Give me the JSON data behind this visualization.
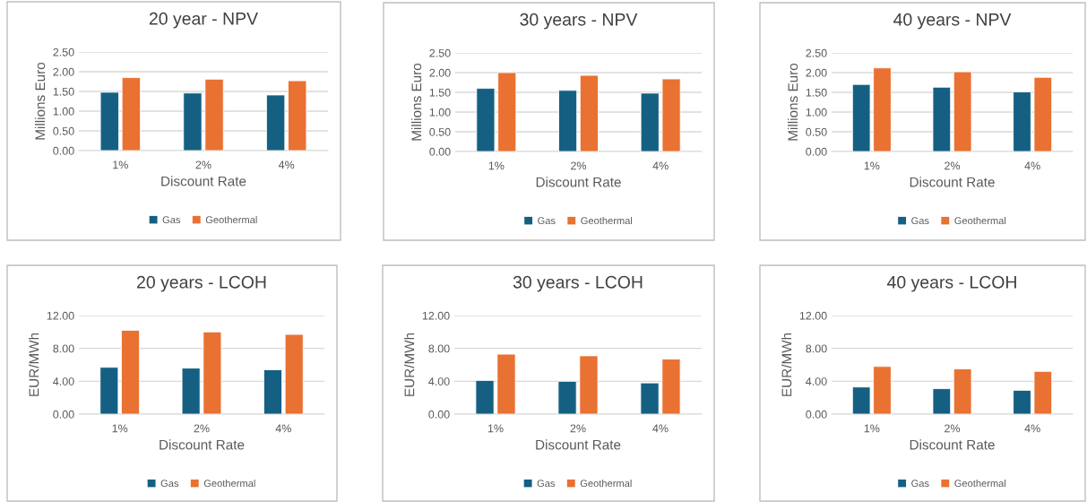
{
  "chart_data": [
    {
      "type": "bar",
      "title": "20 year - NPV",
      "xlabel": "Discount Rate",
      "ylabel": "Millions Euro",
      "categories": [
        "1%",
        "2%",
        "4%"
      ],
      "series": [
        {
          "name": "Gas",
          "color": "#156082",
          "values": [
            1.48,
            1.46,
            1.41
          ]
        },
        {
          "name": "Geothermal",
          "color": "#e97132",
          "values": [
            1.85,
            1.81,
            1.77
          ]
        }
      ],
      "ylim": [
        0,
        2.5
      ],
      "yticks": [
        {
          "value": 0,
          "label": "0.00"
        },
        {
          "value": 0.5,
          "label": "0.50"
        },
        {
          "value": 1,
          "label": "1.00"
        },
        {
          "value": 1.5,
          "label": "1.50"
        },
        {
          "value": 2,
          "label": "2.00"
        },
        {
          "value": 2.5,
          "label": "2.50"
        }
      ],
      "grid": "y",
      "legend": "bottom"
    },
    {
      "type": "bar",
      "title": "30 years - NPV",
      "xlabel": "Discount Rate",
      "ylabel": "Millions Euro",
      "categories": [
        "1%",
        "2%",
        "4%"
      ],
      "series": [
        {
          "name": "Gas",
          "color": "#156082",
          "values": [
            1.6,
            1.55,
            1.48
          ]
        },
        {
          "name": "Geothermal",
          "color": "#e97132",
          "values": [
            2.0,
            1.93,
            1.84
          ]
        }
      ],
      "ylim": [
        0,
        2.5
      ],
      "yticks": [
        {
          "value": 0,
          "label": "0.00"
        },
        {
          "value": 0.5,
          "label": "0.50"
        },
        {
          "value": 1,
          "label": "1.00"
        },
        {
          "value": 1.5,
          "label": "1.50"
        },
        {
          "value": 2,
          "label": "2.00"
        },
        {
          "value": 2.5,
          "label": "2.50"
        }
      ],
      "grid": "y",
      "legend": "bottom"
    },
    {
      "type": "bar",
      "title": "40 years - NPV",
      "xlabel": "Discount Rate",
      "ylabel": "Millions Euro",
      "categories": [
        "1%",
        "2%",
        "4%"
      ],
      "series": [
        {
          "name": "Gas",
          "color": "#156082",
          "values": [
            1.7,
            1.63,
            1.51
          ]
        },
        {
          "name": "Geothermal",
          "color": "#e97132",
          "values": [
            2.12,
            2.02,
            1.88
          ]
        }
      ],
      "ylim": [
        0,
        2.5
      ],
      "yticks": [
        {
          "value": 0,
          "label": "0.00"
        },
        {
          "value": 0.5,
          "label": "0.50"
        },
        {
          "value": 1,
          "label": "1.00"
        },
        {
          "value": 1.5,
          "label": "1.50"
        },
        {
          "value": 2,
          "label": "2.00"
        },
        {
          "value": 2.5,
          "label": "2.50"
        }
      ],
      "grid": "y",
      "legend": "bottom"
    },
    {
      "type": "bar",
      "title": "20 years - LCOH",
      "xlabel": "Discount Rate",
      "ylabel": "EUR/MWh",
      "categories": [
        "1%",
        "2%",
        "4%"
      ],
      "series": [
        {
          "name": "Gas",
          "color": "#156082",
          "values": [
            5.7,
            5.6,
            5.4
          ]
        },
        {
          "name": "Geothermal",
          "color": "#e97132",
          "values": [
            10.2,
            10.0,
            9.7
          ]
        }
      ],
      "ylim": [
        0,
        12
      ],
      "yticks": [
        {
          "value": 0,
          "label": "0.00"
        },
        {
          "value": 4,
          "label": "4.00"
        },
        {
          "value": 8,
          "label": "8.00"
        },
        {
          "value": 12,
          "label": "12.00"
        }
      ],
      "grid": "y",
      "legend": "bottom"
    },
    {
      "type": "bar",
      "title": "30 years - LCOH",
      "xlabel": "Discount Rate",
      "ylabel": "EUR/MWh",
      "categories": [
        "1%",
        "2%",
        "4%"
      ],
      "series": [
        {
          "name": "Gas",
          "color": "#156082",
          "values": [
            4.1,
            4.0,
            3.8
          ]
        },
        {
          "name": "Geothermal",
          "color": "#e97132",
          "values": [
            7.3,
            7.1,
            6.7
          ]
        }
      ],
      "ylim": [
        0,
        12
      ],
      "yticks": [
        {
          "value": 0,
          "label": "0.00"
        },
        {
          "value": 4,
          "label": "4.00"
        },
        {
          "value": 8,
          "label": "8.00"
        },
        {
          "value": 12,
          "label": "12.00"
        }
      ],
      "grid": "y",
      "legend": "bottom"
    },
    {
      "type": "bar",
      "title": "40 years - LCOH",
      "xlabel": "Discount Rate",
      "ylabel": "EUR/MWh",
      "categories": [
        "1%",
        "2%",
        "4%"
      ],
      "series": [
        {
          "name": "Gas",
          "color": "#156082",
          "values": [
            3.3,
            3.1,
            2.9
          ]
        },
        {
          "name": "Geothermal",
          "color": "#e97132",
          "values": [
            5.8,
            5.5,
            5.2
          ]
        }
      ],
      "ylim": [
        0,
        12
      ],
      "yticks": [
        {
          "value": 0,
          "label": "0.00"
        },
        {
          "value": 4,
          "label": "4.00"
        },
        {
          "value": 8,
          "label": "8.00"
        },
        {
          "value": 12,
          "label": "12.00"
        }
      ],
      "grid": "y",
      "legend": "bottom"
    }
  ]
}
